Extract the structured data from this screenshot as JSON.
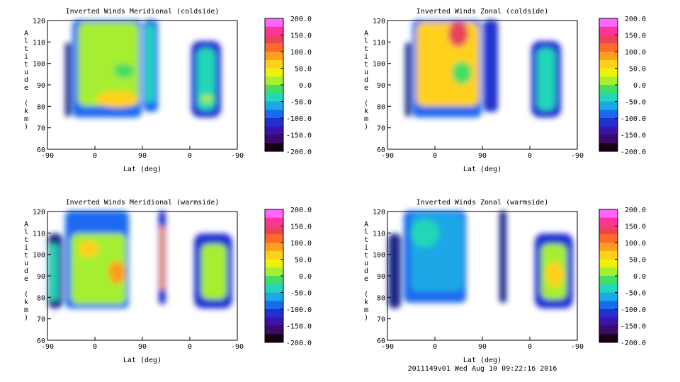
{
  "footer": "2011149v01 Wed Aug 10 09:22:16 2016",
  "colorbar": {
    "ticks": [
      "200.0",
      "150.0",
      "100.0",
      "50.0",
      "0.0",
      "-50.0",
      "-100.0",
      "-150.0",
      "-200.0"
    ],
    "colors": [
      "#ff66ff",
      "#ff3399",
      "#e8445a",
      "#ff6a2a",
      "#ff9e1a",
      "#ffd11a",
      "#eef20a",
      "#a6ee30",
      "#44dd66",
      "#22d6b8",
      "#1aa8e6",
      "#1a6aef",
      "#2230d0",
      "#3a14a8",
      "#3b0a6a",
      "#150015"
    ]
  },
  "chart_data": [
    {
      "type": "heatmap",
      "title": "Inverted Winds Meridional (coldside)",
      "xlabel": "Lat (deg)",
      "ylabel": "Altitude (km)",
      "x_ticks": [
        "-90",
        "0",
        "90",
        "0",
        "-90"
      ],
      "y_ticks": [
        "60",
        "70",
        "80",
        "90",
        "100",
        "110",
        "120"
      ],
      "ylim": [
        60,
        120
      ],
      "colorbar_range": [
        -200,
        200
      ]
    },
    {
      "type": "heatmap",
      "title": "Inverted Winds Zonal (coldside)",
      "xlabel": "Lat (deg)",
      "ylabel": "Altitude (km)",
      "x_ticks": [
        "-90",
        "0",
        "90",
        "0",
        "-90"
      ],
      "y_ticks": [
        "60",
        "70",
        "80",
        "90",
        "100",
        "110",
        "120"
      ],
      "ylim": [
        60,
        120
      ],
      "colorbar_range": [
        -200,
        200
      ]
    },
    {
      "type": "heatmap",
      "title": "Inverted Winds Meridional (warmside)",
      "xlabel": "Lat (deg)",
      "ylabel": "Altitude (km)",
      "x_ticks": [
        "-90",
        "0",
        "90",
        "0",
        "-90"
      ],
      "y_ticks": [
        "60",
        "70",
        "80",
        "90",
        "100",
        "110",
        "120"
      ],
      "ylim": [
        60,
        120
      ],
      "colorbar_range": [
        -200,
        200
      ]
    },
    {
      "type": "heatmap",
      "title": "Inverted Winds Zonal (warmside)",
      "xlabel": "Lat (deg)",
      "ylabel": "Altitude (km)",
      "x_ticks": [
        "-90",
        "0",
        "90",
        "0",
        "-90"
      ],
      "y_ticks": [
        "60",
        "70",
        "80",
        "90",
        "100",
        "110",
        "120"
      ],
      "ylim": [
        60,
        120
      ],
      "colorbar_range": [
        -200,
        200
      ]
    }
  ]
}
